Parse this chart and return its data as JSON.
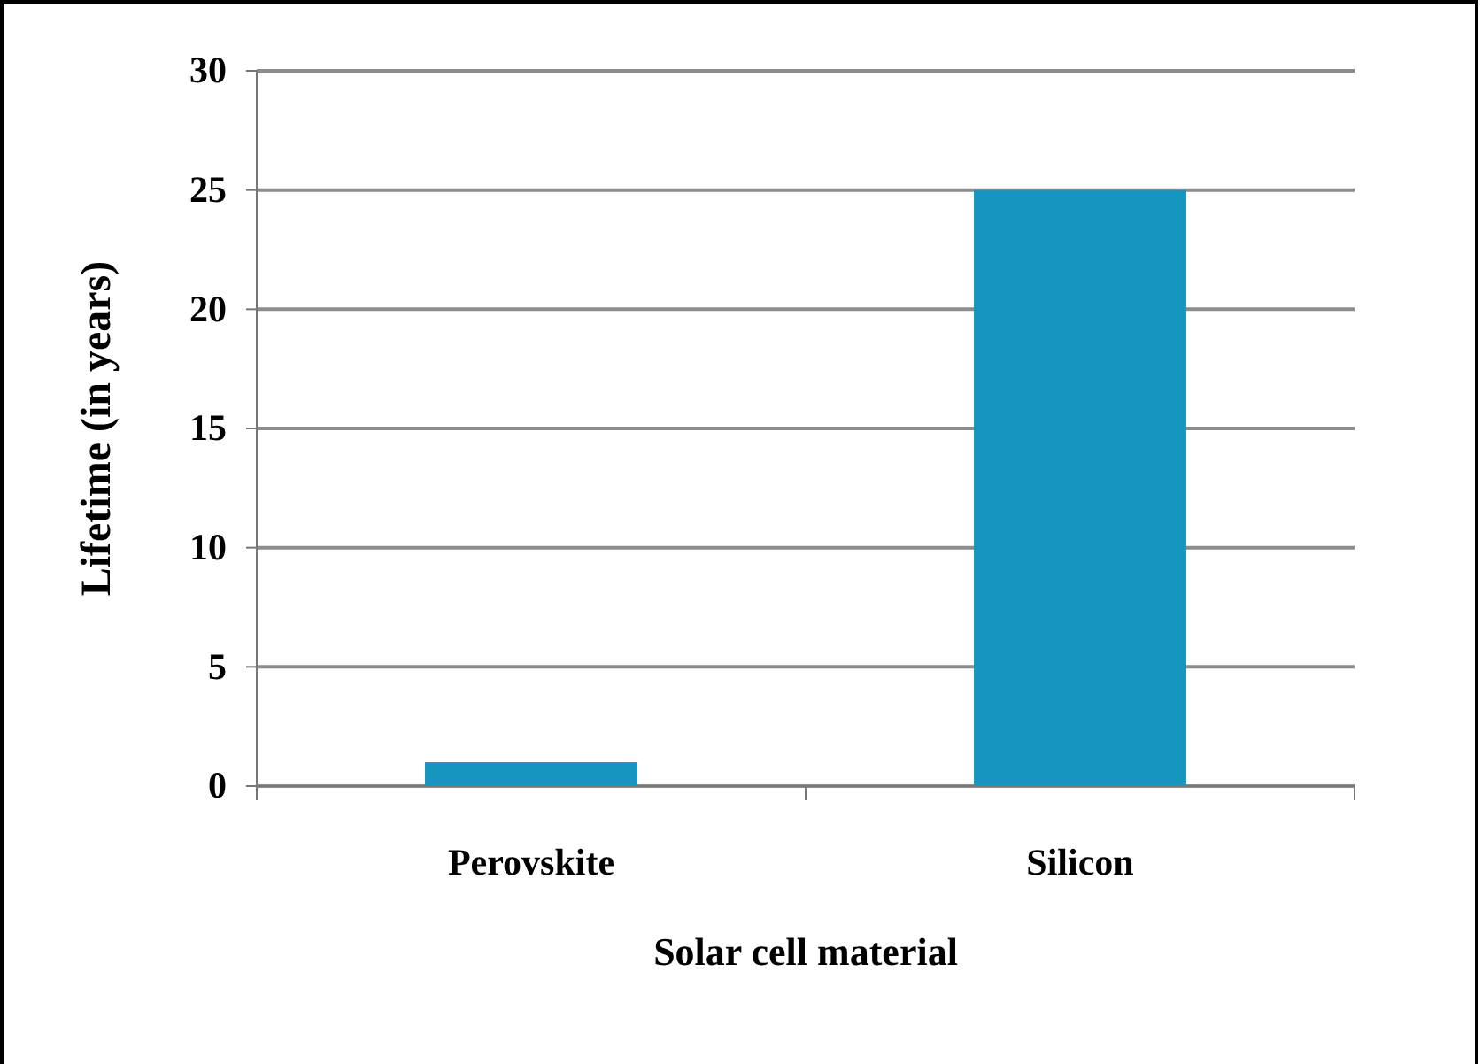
{
  "chart_data": {
    "type": "bar",
    "xlabel": "Solar cell material",
    "ylabel": "Lifetime (in years)",
    "categories": [
      "Perovskite",
      "Silicon"
    ],
    "values": [
      1,
      25
    ],
    "color": "#1596be",
    "ylim": [
      0,
      30
    ],
    "yticks": [
      0,
      5,
      10,
      15,
      20,
      25,
      30
    ],
    "grid": "y"
  }
}
